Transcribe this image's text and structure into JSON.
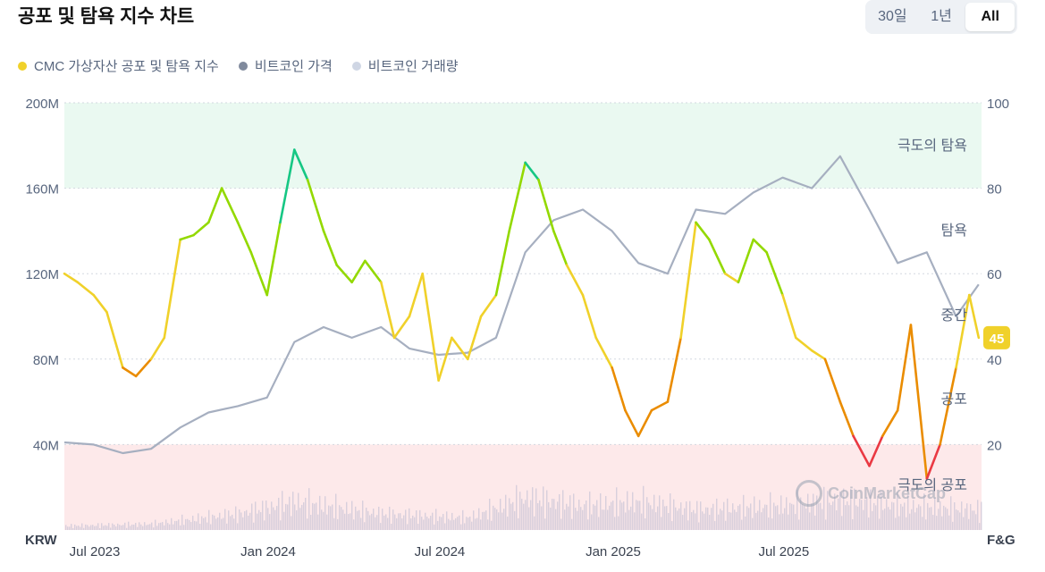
{
  "title": "공포 및 탐욕 지수 차트",
  "range_tabs": [
    "30일",
    "1년",
    "All"
  ],
  "active_tab": "All",
  "legend": [
    {
      "label": "CMC 가상자산 공포 및 탐욕 지수",
      "color": "#f0d12a"
    },
    {
      "label": "비트코인 가격",
      "color": "#808a9d"
    },
    {
      "label": "비트코인 거래량",
      "color": "#cfd6e4"
    }
  ],
  "watermark": "CoinMarketCap",
  "chart_data": {
    "type": "line",
    "left_axis": {
      "unit": "KRW",
      "ticks": [
        "200M",
        "160M",
        "120M",
        "80M",
        "40M"
      ],
      "range": [
        0,
        200
      ]
    },
    "right_axis": {
      "unit": "F&G",
      "ticks": [
        "100",
        "80",
        "60",
        "40",
        "20"
      ],
      "range": [
        0,
        100
      ]
    },
    "x_ticks": [
      "Jul 2023",
      "Jan 2024",
      "Jul 2024",
      "Jan 2025",
      "Jul 2025"
    ],
    "x_range": [
      "2023-07",
      "2026-02"
    ],
    "zones": [
      {
        "label": "극도의 탐욕",
        "from": 80,
        "to": 100,
        "color": "#eaf9f1"
      },
      {
        "label": "탐욕",
        "from": 60,
        "to": 80,
        "color": "#ffffff"
      },
      {
        "label": "중간",
        "from": 40,
        "to": 60,
        "color": "#ffffff"
      },
      {
        "label": "공포",
        "from": 20,
        "to": 40,
        "color": "#ffffff"
      },
      {
        "label": "극도의 공포",
        "from": 0,
        "to": 20,
        "color": "#fde9ea"
      }
    ],
    "current_value": "45",
    "series": [
      {
        "name": "CMC 가상자산 공포 및 탐욕 지수",
        "axis": "right",
        "points": [
          [
            "2023-07-01",
            60
          ],
          [
            "2023-07-15",
            58
          ],
          [
            "2023-08-01",
            55
          ],
          [
            "2023-08-15",
            51
          ],
          [
            "2023-09-01",
            38
          ],
          [
            "2023-09-15",
            36
          ],
          [
            "2023-10-01",
            40
          ],
          [
            "2023-10-15",
            45
          ],
          [
            "2023-11-01",
            68
          ],
          [
            "2023-11-15",
            69
          ],
          [
            "2023-12-01",
            72
          ],
          [
            "2023-12-15",
            80
          ],
          [
            "2024-01-01",
            72
          ],
          [
            "2024-01-15",
            65
          ],
          [
            "2024-02-01",
            55
          ],
          [
            "2024-02-15",
            72
          ],
          [
            "2024-03-01",
            89
          ],
          [
            "2024-03-15",
            82
          ],
          [
            "2024-04-01",
            70
          ],
          [
            "2024-04-15",
            62
          ],
          [
            "2024-05-01",
            58
          ],
          [
            "2024-05-15",
            63
          ],
          [
            "2024-06-01",
            58
          ],
          [
            "2024-06-15",
            45
          ],
          [
            "2024-07-01",
            50
          ],
          [
            "2024-07-15",
            60
          ],
          [
            "2024-08-01",
            35
          ],
          [
            "2024-08-15",
            45
          ],
          [
            "2024-09-01",
            40
          ],
          [
            "2024-09-15",
            50
          ],
          [
            "2024-10-01",
            55
          ],
          [
            "2024-10-15",
            70
          ],
          [
            "2024-11-01",
            86
          ],
          [
            "2024-11-15",
            82
          ],
          [
            "2024-12-01",
            70
          ],
          [
            "2024-12-15",
            62
          ],
          [
            "2025-01-01",
            55
          ],
          [
            "2025-01-15",
            45
          ],
          [
            "2025-02-01",
            38
          ],
          [
            "2025-02-15",
            28
          ],
          [
            "2025-03-01",
            22
          ],
          [
            "2025-03-15",
            28
          ],
          [
            "2025-04-01",
            30
          ],
          [
            "2025-04-15",
            45
          ],
          [
            "2025-05-01",
            72
          ],
          [
            "2025-05-15",
            68
          ],
          [
            "2025-06-01",
            60
          ],
          [
            "2025-06-15",
            58
          ],
          [
            "2025-07-01",
            68
          ],
          [
            "2025-07-15",
            65
          ],
          [
            "2025-08-01",
            55
          ],
          [
            "2025-08-15",
            45
          ],
          [
            "2025-09-01",
            42
          ],
          [
            "2025-09-15",
            40
          ],
          [
            "2025-10-01",
            30
          ],
          [
            "2025-10-15",
            22
          ],
          [
            "2025-11-01",
            15
          ],
          [
            "2025-11-15",
            22
          ],
          [
            "2025-12-01",
            28
          ],
          [
            "2025-12-15",
            48
          ],
          [
            "2026-01-01",
            12
          ],
          [
            "2026-01-15",
            20
          ],
          [
            "2026-02-01",
            38
          ],
          [
            "2026-02-15",
            55
          ],
          [
            "2026-02-25",
            45
          ]
        ]
      },
      {
        "name": "비트코인 가격",
        "axis": "left",
        "points": [
          [
            "2023-07-01",
            41
          ],
          [
            "2023-08-01",
            40
          ],
          [
            "2023-09-01",
            36
          ],
          [
            "2023-10-01",
            38
          ],
          [
            "2023-11-01",
            48
          ],
          [
            "2023-12-01",
            55
          ],
          [
            "2024-01-01",
            58
          ],
          [
            "2024-02-01",
            62
          ],
          [
            "2024-03-01",
            88
          ],
          [
            "2024-04-01",
            95
          ],
          [
            "2024-05-01",
            90
          ],
          [
            "2024-06-01",
            95
          ],
          [
            "2024-07-01",
            85
          ],
          [
            "2024-08-01",
            82
          ],
          [
            "2024-09-01",
            83
          ],
          [
            "2024-10-01",
            90
          ],
          [
            "2024-11-01",
            130
          ],
          [
            "2024-12-01",
            145
          ],
          [
            "2025-01-01",
            150
          ],
          [
            "2025-02-01",
            140
          ],
          [
            "2025-03-01",
            125
          ],
          [
            "2025-04-01",
            120
          ],
          [
            "2025-05-01",
            150
          ],
          [
            "2025-06-01",
            148
          ],
          [
            "2025-07-01",
            158
          ],
          [
            "2025-08-01",
            165
          ],
          [
            "2025-09-01",
            160
          ],
          [
            "2025-10-01",
            175
          ],
          [
            "2025-11-01",
            150
          ],
          [
            "2025-12-01",
            125
          ],
          [
            "2026-01-01",
            130
          ],
          [
            "2026-02-01",
            100
          ],
          [
            "2026-02-25",
            115
          ]
        ]
      },
      {
        "name": "비트코인 거래량",
        "axis": "volume",
        "points": [
          [
            "2023-07-01",
            2
          ],
          [
            "2023-10-01",
            3
          ],
          [
            "2024-01-01",
            8
          ],
          [
            "2024-03-01",
            14
          ],
          [
            "2024-06-01",
            8
          ],
          [
            "2024-09-01",
            6
          ],
          [
            "2024-11-01",
            16
          ],
          [
            "2025-01-01",
            12
          ],
          [
            "2025-03-01",
            14
          ],
          [
            "2025-05-01",
            10
          ],
          [
            "2025-08-01",
            12
          ],
          [
            "2025-10-01",
            15
          ],
          [
            "2025-12-01",
            12
          ],
          [
            "2026-02-25",
            10
          ]
        ]
      }
    ]
  }
}
